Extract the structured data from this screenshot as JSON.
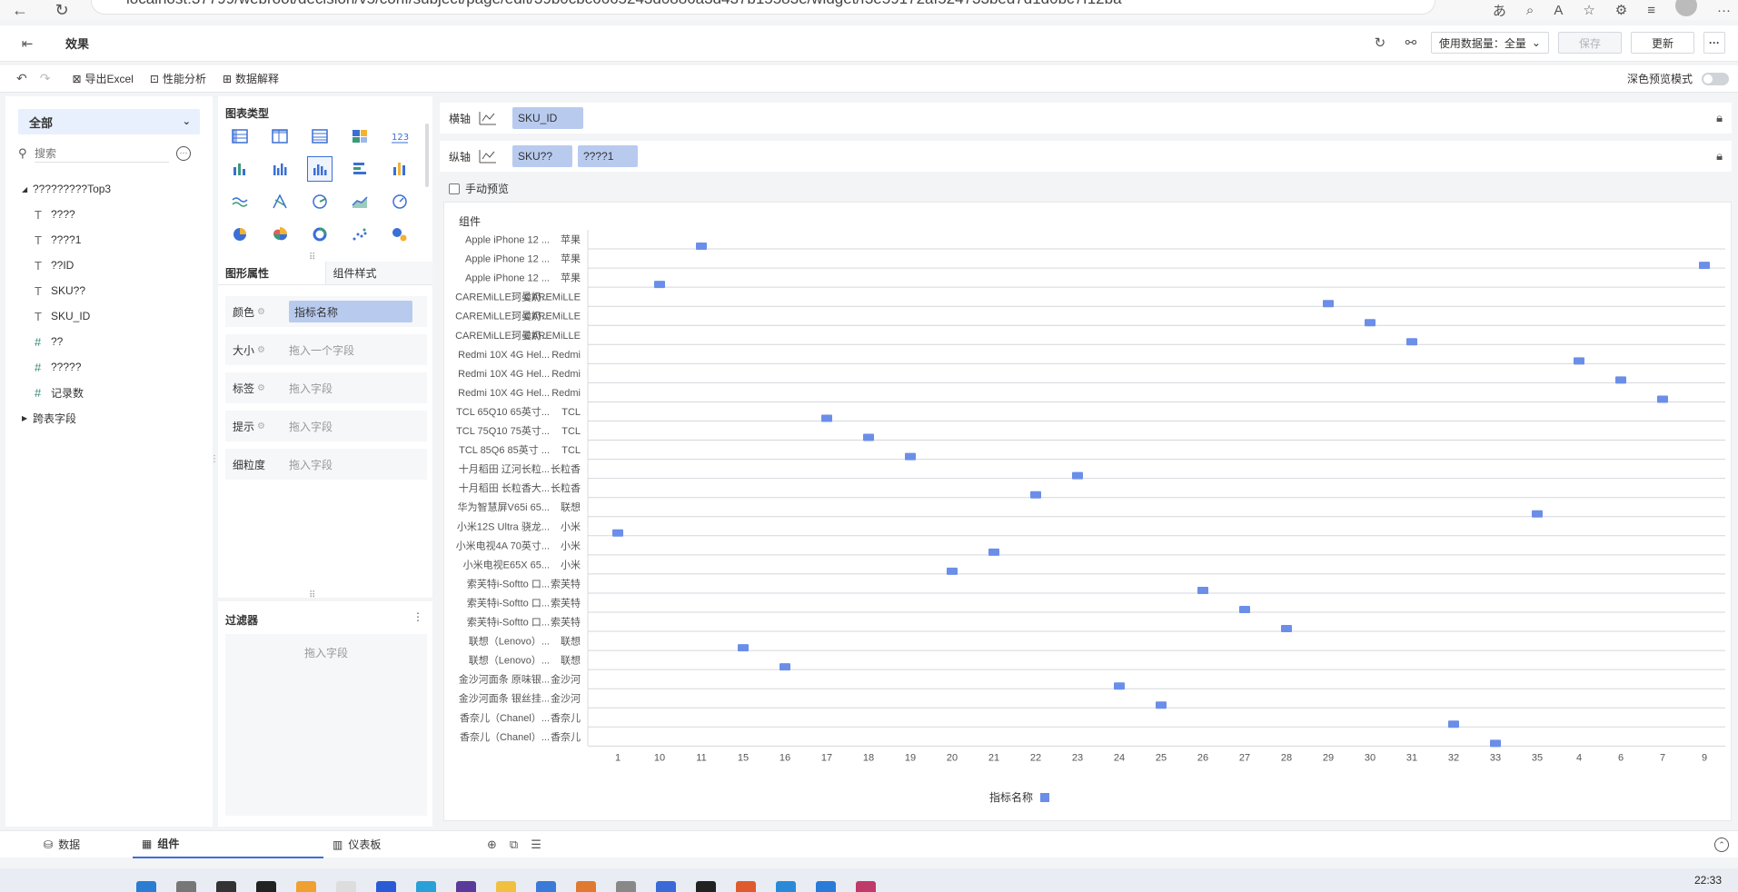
{
  "browser": {
    "url": "localhost:37799/webroot/decision/v5/conf/subject/page/edit/39b0cbc6665243d0886a3d437b15583e/widget/f3e59172af524733bed7d1d0bc7f12ba"
  },
  "header": {
    "title": "效果",
    "data_amount_label": "使用数据量：全量",
    "save_label": "保存",
    "update_label": "更新",
    "more_label": "···"
  },
  "toolbar": {
    "export_label": "导出Excel",
    "perf_label": "性能分析",
    "explain_label": "数据解释",
    "dark_preview_label": "深色预览模式"
  },
  "left_panel": {
    "dropdown_label": "全部",
    "search_placeholder": "搜索",
    "dataset_name": "?????????Top3",
    "fields": [
      {
        "type": "text",
        "label": "????"
      },
      {
        "type": "text",
        "label": "????1"
      },
      {
        "type": "text",
        "label": "??ID"
      },
      {
        "type": "text",
        "label": "SKU??"
      },
      {
        "type": "text",
        "label": "SKU_ID"
      },
      {
        "type": "number",
        "label": "??"
      },
      {
        "type": "number",
        "label": "?????"
      },
      {
        "type": "number",
        "label": "记录数"
      }
    ],
    "cross_table_label": "跨表字段"
  },
  "mid_panel": {
    "chart_type_title": "图表类型",
    "tab_shape": "图形属性",
    "tab_style": "组件样式",
    "props": [
      {
        "label": "颜色",
        "value": "指标名称",
        "filled": true
      },
      {
        "label": "大小",
        "value": "拖入一个字段",
        "filled": false
      },
      {
        "label": "标签",
        "value": "拖入字段",
        "filled": false
      },
      {
        "label": "提示",
        "value": "拖入字段",
        "filled": false
      },
      {
        "label": "细粒度",
        "value": "拖入字段",
        "filled": false
      }
    ],
    "filter_title": "过滤器",
    "filter_placeholder": "拖入字段"
  },
  "axes": {
    "x_label": "横轴",
    "x_fields": [
      "SKU_ID"
    ],
    "y_label": "纵轴",
    "y_fields": [
      "SKU??",
      "????1"
    ],
    "manual_preview_label": "手动预览"
  },
  "chart_title": "组件",
  "chart_data": {
    "type": "scatter",
    "x_categories": [
      "1",
      "10",
      "11",
      "15",
      "16",
      "17",
      "18",
      "19",
      "20",
      "21",
      "22",
      "23",
      "24",
      "25",
      "26",
      "27",
      "28",
      "29",
      "30",
      "31",
      "32",
      "33",
      "35",
      "4",
      "6",
      "7",
      "9"
    ],
    "rows": [
      {
        "sku": "Apple iPhone 12 ...",
        "brand": "苹果",
        "x": "11"
      },
      {
        "sku": "Apple iPhone 12 ...",
        "brand": "苹果",
        "x": "9"
      },
      {
        "sku": "Apple iPhone 12 ...",
        "brand": "苹果",
        "x": "10"
      },
      {
        "sku": "CAREMiLLE珂曼奶...",
        "brand": "CAREMiLLE",
        "x": "29"
      },
      {
        "sku": "CAREMiLLE珂曼奶...",
        "brand": "CAREMiLLE",
        "x": "30"
      },
      {
        "sku": "CAREMiLLE珂曼奶...",
        "brand": "CAREMiLLE",
        "x": "31"
      },
      {
        "sku": "Redmi 10X 4G Hel...",
        "brand": "Redmi",
        "x": "4"
      },
      {
        "sku": "Redmi 10X 4G Hel...",
        "brand": "Redmi",
        "x": "6"
      },
      {
        "sku": "Redmi 10X 4G Hel...",
        "brand": "Redmi",
        "x": "7"
      },
      {
        "sku": "TCL 65Q10 65英寸...",
        "brand": "TCL",
        "x": "17"
      },
      {
        "sku": "TCL 75Q10 75英寸...",
        "brand": "TCL",
        "x": "18"
      },
      {
        "sku": "TCL 85Q6 85英寸 ...",
        "brand": "TCL",
        "x": "19"
      },
      {
        "sku": "十月稻田 辽河长粒...",
        "brand": "长粒香",
        "x": "23"
      },
      {
        "sku": "十月稻田 长粒香大...",
        "brand": "长粒香",
        "x": "22"
      },
      {
        "sku": "华为智慧屏V65i 65...",
        "brand": "联想",
        "x": "35"
      },
      {
        "sku": "小米12S Ultra 骁龙...",
        "brand": "小米",
        "x": "1"
      },
      {
        "sku": "小米电视4A 70英寸...",
        "brand": "小米",
        "x": "21"
      },
      {
        "sku": "小米电视E65X 65...",
        "brand": "小米",
        "x": "20"
      },
      {
        "sku": "索芙特i-Softto 口...",
        "brand": "索芙特",
        "x": "26"
      },
      {
        "sku": "索芙特i-Softto 口...",
        "brand": "索芙特",
        "x": "27"
      },
      {
        "sku": "索芙特i-Softto 口...",
        "brand": "索芙特",
        "x": "28"
      },
      {
        "sku": "联想（Lenovo）...",
        "brand": "联想",
        "x": "15"
      },
      {
        "sku": "联想（Lenovo）...",
        "brand": "联想",
        "x": "16"
      },
      {
        "sku": "金沙河面条 原味银...",
        "brand": "金沙河",
        "x": "24"
      },
      {
        "sku": "金沙河面条 银丝挂...",
        "brand": "金沙河",
        "x": "25"
      },
      {
        "sku": "香奈儿（Chanel）...",
        "brand": "香奈儿",
        "x": "32"
      },
      {
        "sku": "香奈儿（Chanel）...",
        "brand": "香奈儿",
        "x": "33"
      }
    ],
    "legend": [
      "指标名称"
    ],
    "legend_placement": "bottom",
    "grid": true,
    "mark_color": "#6b8ee8"
  },
  "bottom_tabs": {
    "data": "数据",
    "component": "组件",
    "dashboard": "仪表板"
  },
  "taskbar": {
    "clock": "22:33"
  }
}
